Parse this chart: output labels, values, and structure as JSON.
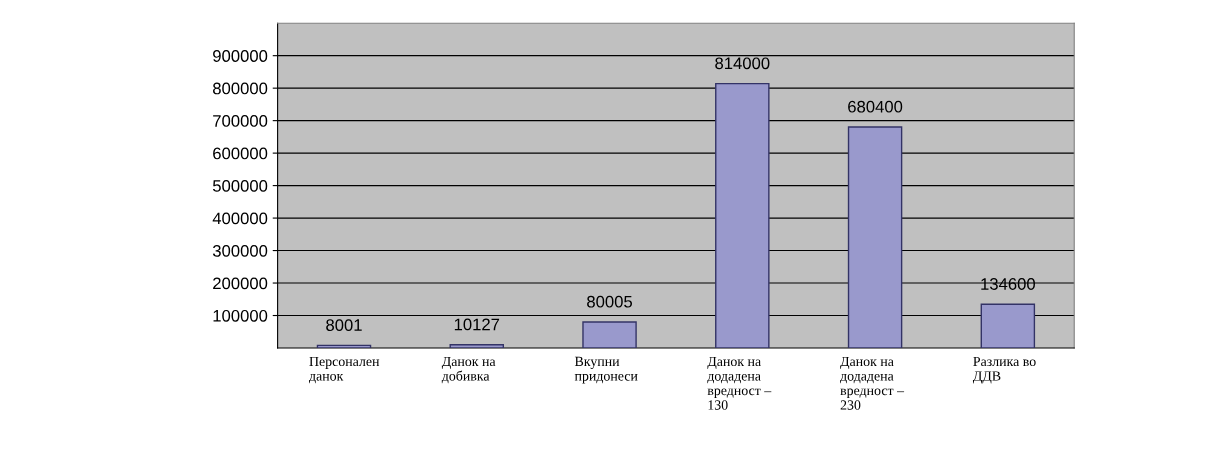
{
  "chart_data": {
    "type": "bar",
    "categories": [
      "Персонален\nданок",
      "Данок на\nдобивка",
      "Вкупни\nпридонеси",
      "Данок на\nдодадена\nвредност –\n130",
      "Данок на\nдодадена\nвредност –\n230",
      "Разлика во\nДДВ"
    ],
    "values": [
      8001,
      10127,
      80005,
      814000,
      680400,
      134600
    ],
    "color": "#9999cc",
    "ylim": [
      0,
      1000000
    ],
    "yticks": [
      100000,
      200000,
      300000,
      400000,
      500000,
      600000,
      700000,
      800000,
      900000
    ],
    "grid": "y",
    "data_labels": true
  }
}
